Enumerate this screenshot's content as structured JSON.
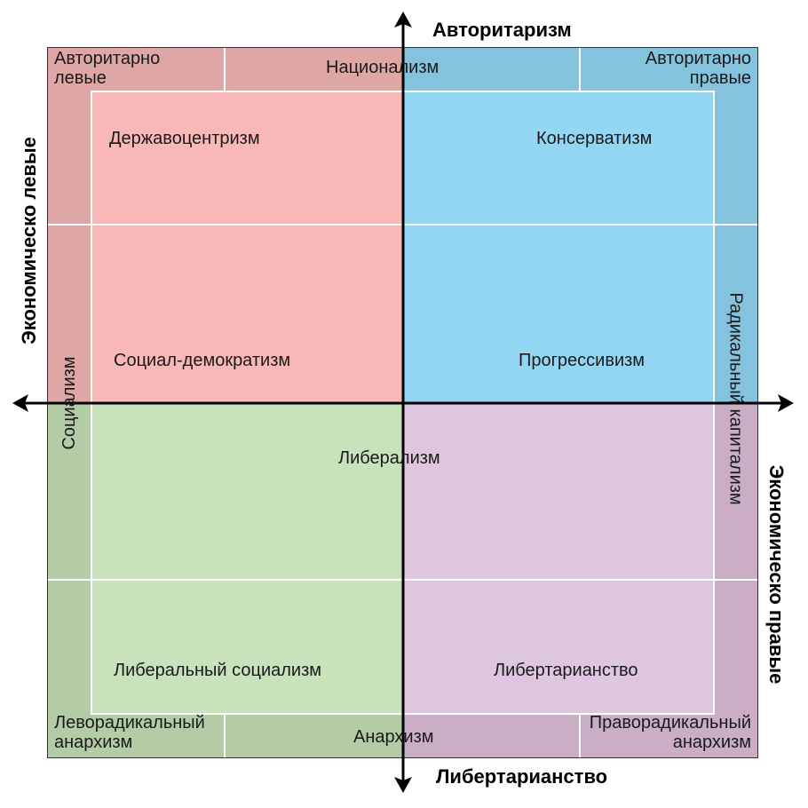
{
  "axes": {
    "top": "Авторитаризм",
    "bottom": "Либертарианство",
    "left": "Экономическо левые",
    "right": "Экономическо правые"
  },
  "corners": {
    "top_left": "Авторитарно\nлевые",
    "top_right": "Авторитарно\nправые",
    "bottom_left": "Леворадикальный\nанархизм",
    "bottom_right": "Праворадикальный\nанархизм"
  },
  "edges": {
    "top": "Национализм",
    "bottom": "Анархизм",
    "left": "Социализм",
    "right": "Радикальный капитализм"
  },
  "cells": {
    "derzhavo": "Державоцентризм",
    "konserv": "Консерватизм",
    "socdem": "Социал-демократизм",
    "progress": "Прогрессивизм",
    "liberal": "Либерализм",
    "libsoc": "Либеральный социализм",
    "libert": "Либертарианство"
  },
  "colors": {
    "auth_left_outer": "#dfa6a6",
    "auth_left_inner": "#f8b8b8",
    "auth_right_outer": "#84c2de",
    "auth_right_inner": "#92d6f4",
    "lib_left_outer": "#b4cca6",
    "lib_left_inner": "#c8e2bc",
    "lib_right_outer": "#c9aec5",
    "lib_right_inner": "#dfc6e0"
  }
}
